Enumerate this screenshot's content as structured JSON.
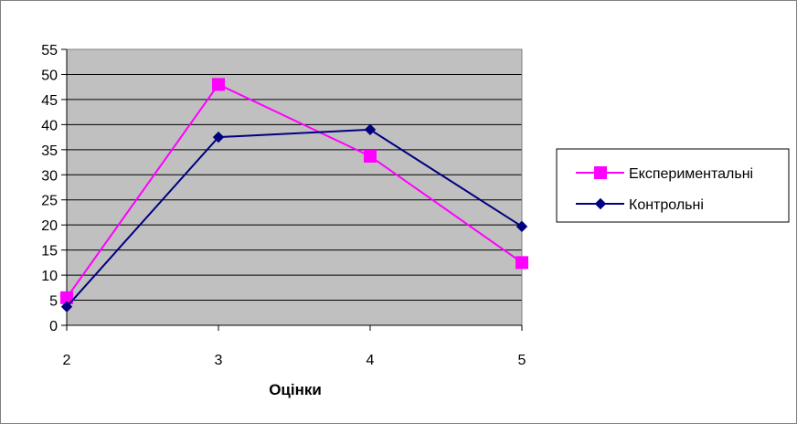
{
  "chart_data": {
    "type": "line",
    "title": "",
    "xlabel": "Оцінки",
    "ylabel": "",
    "categories": [
      "2",
      "3",
      "4",
      "5"
    ],
    "ylim": [
      0,
      55
    ],
    "ytick_step": 5,
    "y_ticks": [
      "0",
      "5",
      "10",
      "15",
      "20",
      "25",
      "30",
      "35",
      "40",
      "45",
      "50",
      "55"
    ],
    "grid": true,
    "legend_position": "right",
    "plot_background": "#c0c0c0",
    "series": [
      {
        "name": "Експериментальні",
        "values": [
          5.5,
          48,
          33.7,
          12.5
        ],
        "color": "#ff00ff",
        "marker": "square"
      },
      {
        "name": "Контрольні",
        "values": [
          3.7,
          37.5,
          39,
          19.7
        ],
        "color": "#000080",
        "marker": "diamond"
      }
    ]
  }
}
